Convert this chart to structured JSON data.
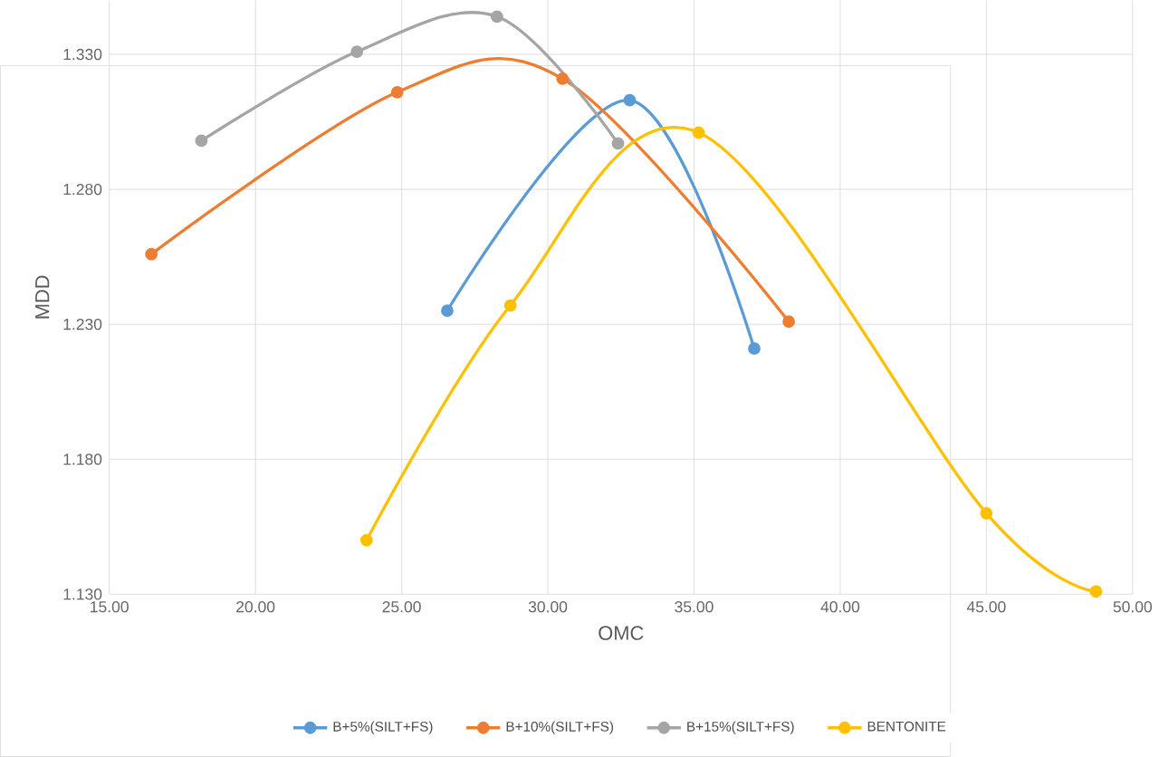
{
  "chart_data": {
    "type": "line",
    "xlabel": "OMC",
    "ylabel": "MDD",
    "xlim": [
      15,
      50
    ],
    "ylim": [
      1.13,
      1.35
    ],
    "xticks": [
      {
        "value": 15,
        "label": "15.00"
      },
      {
        "value": 20,
        "label": "20.00"
      },
      {
        "value": 25,
        "label": "25.00"
      },
      {
        "value": 30,
        "label": "30.00"
      },
      {
        "value": 35,
        "label": "35.00"
      },
      {
        "value": 40,
        "label": "40.00"
      },
      {
        "value": 45,
        "label": "45.00"
      },
      {
        "value": 50,
        "label": "50.00"
      }
    ],
    "yticks": [
      {
        "value": 1.13,
        "label": "1.130"
      },
      {
        "value": 1.18,
        "label": "1.180"
      },
      {
        "value": 1.23,
        "label": "1.230"
      },
      {
        "value": 1.28,
        "label": "1.280"
      },
      {
        "value": 1.33,
        "label": "1.330"
      }
    ],
    "grid": true,
    "legend": "bottom",
    "marker": "circle",
    "line_style": "solid",
    "series": [
      {
        "name": "B+5%(SILT+FS)",
        "color": "#5b9bd5",
        "x": [
          26.56,
          32.8,
          37.06
        ],
        "values": [
          1.235,
          1.313,
          1.221
        ]
      },
      {
        "name": "B+10%(SILT+FS)",
        "color": "#ed7d31",
        "x": [
          16.44,
          24.85,
          30.5,
          38.24
        ],
        "values": [
          1.256,
          1.316,
          1.321,
          1.231
        ]
      },
      {
        "name": "B+15%(SILT+FS)",
        "color": "#a5a5a5",
        "x": [
          18.15,
          23.47,
          28.26,
          32.4
        ],
        "values": [
          1.298,
          1.331,
          1.344,
          1.297
        ]
      },
      {
        "name": "BENTONITE",
        "color": "#ffc000",
        "x": [
          23.8,
          28.72,
          35.16,
          45.0,
          48.75
        ],
        "values": [
          1.15,
          1.237,
          1.301,
          1.16,
          1.131
        ]
      }
    ]
  }
}
